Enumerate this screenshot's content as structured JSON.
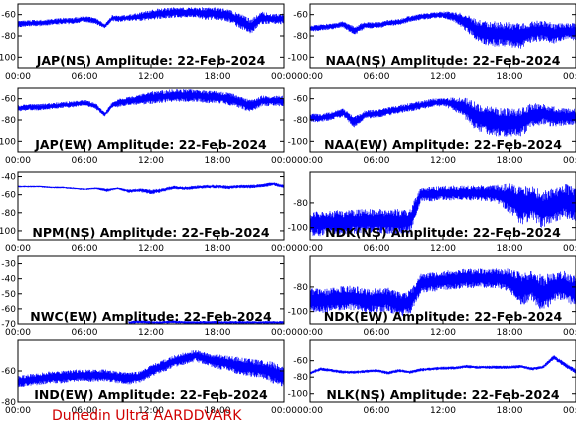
{
  "footer": "Dunedin Ultra AARDDVARK",
  "colors": {
    "trace": "#0000ff",
    "axis": "#000000",
    "background": "#ffffff",
    "footer": "#d00000"
  },
  "chart_data": [
    {
      "type": "line",
      "title": "JAP(NS) Amplitude: 22-Feb-2024",
      "x_ticks": [
        "00:00",
        "06:00",
        "12:00",
        "18:00",
        "00:00"
      ],
      "y_ticks": [
        "-60",
        "-80",
        "-100"
      ],
      "ylim": [
        -110,
        -50
      ],
      "series": [
        {
          "x": [
            0,
            1,
            2,
            3,
            4,
            5,
            6,
            7,
            7.8,
            8.5,
            9,
            10,
            11,
            12,
            13,
            14,
            15,
            16,
            17,
            18,
            19,
            20,
            21,
            22,
            23,
            24
          ],
          "y": [
            -69,
            -68,
            -68,
            -67,
            -66,
            -66,
            -64,
            -66,
            -71,
            -63,
            -64,
            -63,
            -62,
            -60,
            -59,
            -58,
            -58,
            -58,
            -59,
            -59,
            -61,
            -66,
            -71,
            -63,
            -64,
            -64
          ],
          "spread": [
            3,
            3,
            3,
            3,
            3,
            3,
            3,
            3,
            2,
            3,
            3,
            3,
            4,
            5,
            5,
            5,
            5,
            5,
            6,
            6,
            6,
            7,
            7,
            6,
            5,
            5
          ]
        }
      ]
    },
    {
      "type": "line",
      "title": "NAA(NS) Amplitude: 22-Feb-2024",
      "x_ticks": [
        "00:00",
        "06:00",
        "12:00",
        "18:00",
        "00:00"
      ],
      "y_ticks": [
        "-60",
        "-80",
        "-100"
      ],
      "ylim": [
        -110,
        -50
      ],
      "series": [
        {
          "x": [
            0,
            1,
            2,
            3,
            4,
            5,
            6,
            7,
            8,
            9,
            10,
            11,
            12,
            13,
            14,
            15,
            16,
            17,
            18,
            19,
            20,
            21,
            22,
            23,
            24
          ],
          "y": [
            -73,
            -72,
            -71,
            -69,
            -75,
            -70,
            -70,
            -68,
            -67,
            -64,
            -62,
            -61,
            -60,
            -62,
            -67,
            -74,
            -78,
            -78,
            -79,
            -80,
            -76,
            -75,
            -78,
            -76,
            -76
          ],
          "spread": [
            3,
            3,
            3,
            3,
            5,
            3,
            3,
            3,
            3,
            3,
            3,
            3,
            3,
            5,
            8,
            10,
            12,
            12,
            12,
            12,
            10,
            10,
            10,
            8,
            8
          ]
        }
      ]
    },
    {
      "type": "line",
      "title": "JAP(EW) Amplitude: 22-Feb-2024",
      "x_ticks": [
        "00:00",
        "06:00",
        "12:00",
        "18:00",
        "00:00"
      ],
      "y_ticks": [
        "-60",
        "-80",
        "-100"
      ],
      "ylim": [
        -110,
        -50
      ],
      "series": [
        {
          "x": [
            0,
            1,
            2,
            3,
            4,
            5,
            6,
            7,
            7.8,
            8.5,
            9,
            10,
            11,
            12,
            13,
            14,
            15,
            16,
            17,
            18,
            19,
            20,
            21,
            22,
            23,
            24
          ],
          "y": [
            -69,
            -68,
            -68,
            -67,
            -66,
            -65,
            -64,
            -67,
            -75,
            -66,
            -64,
            -62,
            -61,
            -59,
            -58,
            -57,
            -57,
            -57,
            -58,
            -59,
            -60,
            -63,
            -67,
            -62,
            -62,
            -62
          ],
          "spread": [
            3,
            3,
            3,
            3,
            3,
            3,
            3,
            3,
            2,
            3,
            4,
            4,
            5,
            6,
            6,
            6,
            6,
            6,
            6,
            6,
            6,
            6,
            6,
            5,
            5,
            5
          ]
        }
      ]
    },
    {
      "type": "line",
      "title": "NAA(EW) Amplitude: 22-Feb-2024",
      "x_ticks": [
        "00:00",
        "06:00",
        "12:00",
        "18:00",
        "00:00"
      ],
      "y_ticks": [
        "-60",
        "-80",
        "-100"
      ],
      "ylim": [
        -110,
        -50
      ],
      "series": [
        {
          "x": [
            0,
            1,
            2,
            3,
            4,
            5,
            6,
            7,
            8,
            9,
            10,
            11,
            12,
            13,
            14,
            15,
            16,
            17,
            18,
            19,
            20,
            21,
            22,
            23,
            24
          ],
          "y": [
            -78,
            -78,
            -76,
            -73,
            -82,
            -75,
            -74,
            -72,
            -70,
            -68,
            -66,
            -64,
            -63,
            -65,
            -69,
            -77,
            -80,
            -82,
            -82,
            -82,
            -76,
            -74,
            -77,
            -77,
            -77
          ],
          "spread": [
            4,
            4,
            4,
            4,
            6,
            4,
            4,
            4,
            4,
            4,
            4,
            4,
            4,
            6,
            10,
            14,
            14,
            14,
            14,
            14,
            12,
            10,
            10,
            8,
            8
          ]
        }
      ]
    },
    {
      "type": "line",
      "title": "NPM(NS) Amplitude: 22-Feb-2024",
      "x_ticks": [
        "00:00",
        "06:00",
        "12:00",
        "18:00",
        "00:00"
      ],
      "y_ticks": [
        "-40",
        "-60",
        "-80",
        "-100"
      ],
      "ylim": [
        -110,
        -35
      ],
      "series": [
        {
          "x": [
            0,
            1,
            2,
            3,
            4,
            5,
            6,
            7,
            8,
            9,
            10,
            11,
            12,
            13,
            14,
            15,
            16,
            17,
            18,
            19,
            20,
            21,
            22,
            23,
            24
          ],
          "y": [
            -51,
            -51,
            -51,
            -52,
            -52,
            -53,
            -54,
            -53,
            -55,
            -53,
            -56,
            -55,
            -57,
            -55,
            -52,
            -53,
            -52,
            -51,
            -51,
            -52,
            -51,
            -51,
            -50,
            -48,
            -51
          ],
          "spread": [
            1,
            1,
            1,
            1,
            1,
            1,
            1,
            1,
            2,
            1,
            2,
            2,
            3,
            2,
            2,
            2,
            2,
            2,
            2,
            2,
            2,
            2,
            2,
            2,
            2
          ]
        }
      ]
    },
    {
      "type": "line",
      "title": "NDK(NS) Amplitude: 22-Feb-2024",
      "x_ticks": [
        "00:00",
        "06:00",
        "12:00",
        "18:00",
        "00:00"
      ],
      "y_ticks": [
        "-80",
        "-100"
      ],
      "ylim": [
        -110,
        -55
      ],
      "series": [
        {
          "x": [
            0,
            1,
            2,
            3,
            4,
            5,
            6,
            7,
            8,
            9,
            10,
            11,
            12,
            13,
            14,
            15,
            16,
            17,
            18,
            19,
            20,
            21,
            22,
            23,
            24
          ],
          "y": [
            -97,
            -97,
            -96,
            -96,
            -95,
            -95,
            -95,
            -95,
            -95,
            -95,
            -73,
            -73,
            -72,
            -72,
            -72,
            -72,
            -72,
            -73,
            -76,
            -82,
            -80,
            -85,
            -82,
            -78,
            -82
          ],
          "spread": [
            10,
            10,
            10,
            10,
            10,
            10,
            10,
            10,
            10,
            10,
            6,
            6,
            6,
            6,
            6,
            6,
            7,
            8,
            12,
            16,
            14,
            16,
            14,
            14,
            14
          ]
        }
      ]
    },
    {
      "type": "line",
      "title": "NWC(EW) Amplitude: 22-Feb-2024",
      "x_ticks": [
        "00:00",
        "06:00",
        "12:00",
        "18:00",
        "00:00"
      ],
      "y_ticks": [
        "-30",
        "-40",
        "-50",
        "-60",
        "-70"
      ],
      "ylim": [
        -70,
        -25
      ],
      "series": [
        {
          "x": [
            10,
            11,
            12,
            13,
            14,
            15,
            16,
            17,
            18,
            19,
            20,
            21,
            22,
            23,
            24
          ],
          "y": [
            -69,
            -68.5,
            -69,
            -69,
            -68.5,
            -69,
            -69,
            -69,
            -69,
            -69,
            -69,
            -69,
            -69,
            -69,
            -69
          ],
          "spread": [
            1,
            1,
            1,
            1,
            1,
            1,
            1,
            1,
            1,
            1,
            1,
            1,
            1,
            1,
            1
          ]
        }
      ]
    },
    {
      "type": "line",
      "title": "NDK(EW) Amplitude: 22-Feb-2024",
      "x_ticks": [
        "00:00",
        "06:00",
        "12:00",
        "18:00",
        "00:00"
      ],
      "y_ticks": [
        "-80",
        "-100"
      ],
      "ylim": [
        -110,
        -55
      ],
      "series": [
        {
          "x": [
            0,
            1,
            2,
            3,
            4,
            5,
            6,
            7,
            8,
            9,
            10,
            11,
            12,
            13,
            14,
            15,
            16,
            17,
            18,
            19,
            20,
            21,
            22,
            23,
            24
          ],
          "y": [
            -90,
            -92,
            -90,
            -89,
            -89,
            -91,
            -91,
            -90,
            -94,
            -93,
            -77,
            -76,
            -75,
            -74,
            -73,
            -73,
            -73,
            -73,
            -75,
            -82,
            -79,
            -86,
            -80,
            -79,
            -85
          ],
          "spread": [
            10,
            10,
            10,
            10,
            10,
            10,
            10,
            10,
            10,
            10,
            8,
            8,
            8,
            8,
            8,
            8,
            8,
            8,
            10,
            14,
            12,
            16,
            12,
            12,
            14
          ]
        }
      ]
    },
    {
      "type": "line",
      "title": "IND(EW) Amplitude: 22-Feb-2024",
      "x_ticks": [
        "00:00",
        "06:00",
        "12:00",
        "18:00",
        "00:00"
      ],
      "y_ticks": [
        "-60",
        "-80"
      ],
      "ylim": [
        -80,
        -40
      ],
      "series": [
        {
          "x": [
            0,
            1,
            2,
            3,
            4,
            5,
            6,
            7,
            8,
            9,
            10,
            11,
            12,
            13,
            14,
            15,
            16,
            17,
            18,
            19,
            20,
            21,
            22,
            23,
            24
          ],
          "y": [
            -67,
            -66,
            -65,
            -64,
            -64,
            -63,
            -63,
            -63,
            -63,
            -64,
            -65,
            -64,
            -60,
            -57,
            -54,
            -52,
            -50,
            -52,
            -54,
            -55,
            -57,
            -58,
            -59,
            -61,
            -64
          ],
          "spread": [
            4,
            4,
            4,
            4,
            4,
            4,
            4,
            4,
            4,
            4,
            4,
            4,
            4,
            4,
            4,
            4,
            4,
            4,
            5,
            5,
            6,
            6,
            6,
            7,
            7
          ]
        }
      ]
    },
    {
      "type": "line",
      "title": "NLK(NS) Amplitude: 22-Feb-2024",
      "x_ticks": [
        "00:00",
        "06:00",
        "12:00",
        "18:00",
        "00:00"
      ],
      "y_ticks": [
        "-60",
        "-80",
        "-100"
      ],
      "ylim": [
        -110,
        -35
      ],
      "series": [
        {
          "x": [
            0,
            1,
            2,
            3,
            4,
            5,
            6,
            7,
            8,
            9,
            10,
            11,
            12,
            13,
            14,
            15,
            16,
            17,
            18,
            19,
            20,
            21,
            22,
            23,
            24
          ],
          "y": [
            -75,
            -70,
            -72,
            -74,
            -74,
            -73,
            -72,
            -75,
            -72,
            -74,
            -71,
            -70,
            -69,
            -69,
            -67,
            -68,
            -68,
            -68,
            -68,
            -67,
            -70,
            -68,
            -56,
            -65,
            -73
          ],
          "spread": [
            2,
            2,
            2,
            2,
            2,
            2,
            2,
            2,
            2,
            2,
            2,
            2,
            2,
            2,
            2,
            2,
            2,
            2,
            2,
            2,
            2,
            2,
            3,
            3,
            3
          ]
        }
      ]
    }
  ]
}
